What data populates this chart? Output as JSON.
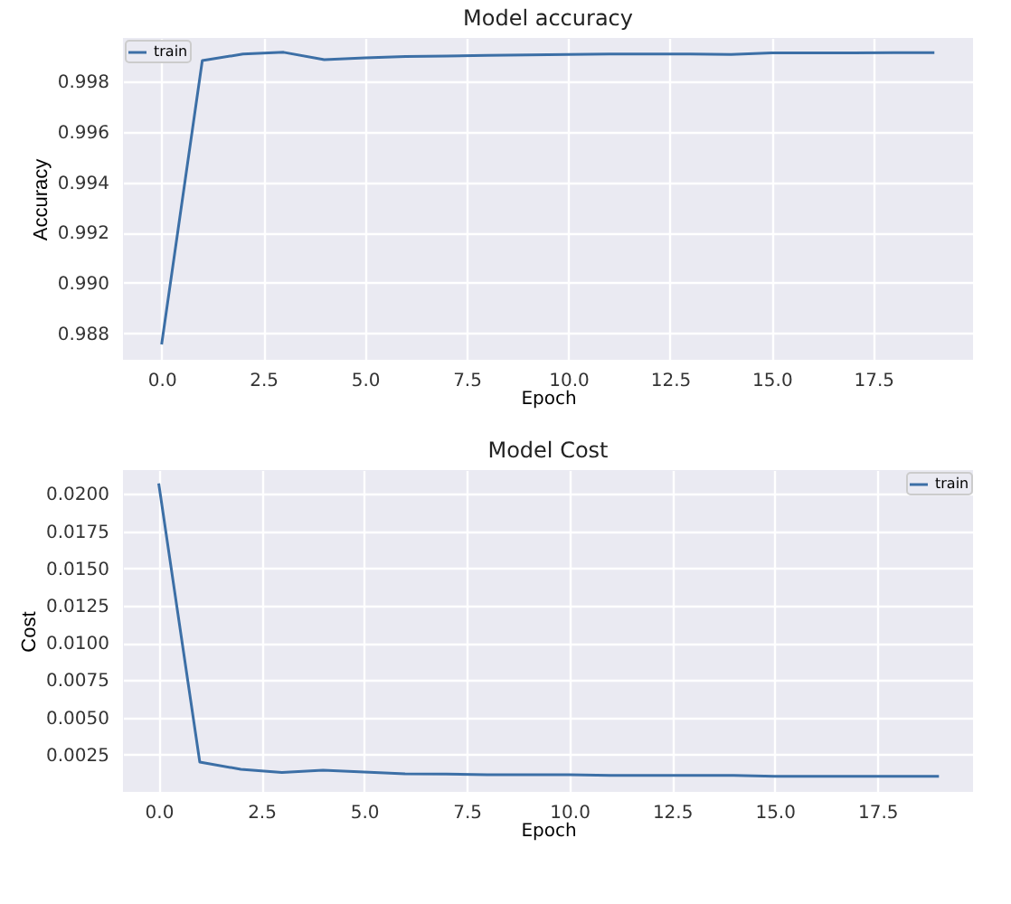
{
  "chart_data": [
    {
      "type": "line",
      "title": "Model accuracy",
      "xlabel": "Epoch",
      "ylabel": "Accuracy",
      "x": [
        0,
        1,
        2,
        3,
        4,
        5,
        6,
        7,
        8,
        9,
        10,
        11,
        12,
        13,
        14,
        15,
        16,
        17,
        18,
        19
      ],
      "series": [
        {
          "name": "train",
          "color": "#3c6fa6",
          "values": [
            0.98755,
            0.99884,
            0.9991,
            0.99917,
            0.99888,
            0.99895,
            0.999,
            0.99902,
            0.99905,
            0.99907,
            0.99908,
            0.9991,
            0.9991,
            0.9991,
            0.99908,
            0.99915,
            0.99915,
            0.99915,
            0.99916,
            0.99916
          ]
        }
      ],
      "xlim": [
        -0.95,
        19.95
      ],
      "ylim": [
        0.98694,
        0.99974
      ],
      "xticks": [
        {
          "value": 0,
          "label": "0.0"
        },
        {
          "value": 2.5,
          "label": "2.5"
        },
        {
          "value": 5,
          "label": "5.0"
        },
        {
          "value": 7.5,
          "label": "7.5"
        },
        {
          "value": 10,
          "label": "10.0"
        },
        {
          "value": 12.5,
          "label": "12.5"
        },
        {
          "value": 15,
          "label": "15.0"
        },
        {
          "value": 17.5,
          "label": "17.5"
        }
      ],
      "yticks": [
        0.988,
        {
          "value": 0.99,
          "label": "0.990"
        },
        0.992,
        0.994,
        0.996,
        0.998
      ],
      "grid": true,
      "legend": "top left"
    },
    {
      "type": "line",
      "title": "Model Cost",
      "xlabel": "Epoch",
      "ylabel": "Cost",
      "x": [
        0,
        1,
        2,
        3,
        4,
        5,
        6,
        7,
        8,
        9,
        10,
        11,
        12,
        13,
        14,
        15,
        16,
        17,
        18,
        19
      ],
      "series": [
        {
          "name": "train",
          "color": "#3c6fa6",
          "values": [
            0.0207,
            0.002,
            0.00152,
            0.0013,
            0.00145,
            0.00134,
            0.00122,
            0.0012,
            0.00115,
            0.00115,
            0.00115,
            0.0011,
            0.0011,
            0.0011,
            0.0011,
            0.00105,
            0.00105,
            0.00105,
            0.00105,
            0.00105
          ]
        }
      ],
      "xlim": [
        -0.87,
        19.83
      ],
      "ylim": [
        0,
        0.0216
      ],
      "xticks": [
        {
          "value": 0,
          "label": "0.0"
        },
        {
          "value": 2.5,
          "label": "2.5"
        },
        {
          "value": 5,
          "label": "5.0"
        },
        {
          "value": 7.5,
          "label": "7.5"
        },
        {
          "value": 10,
          "label": "10.0"
        },
        {
          "value": 12.5,
          "label": "12.5"
        },
        {
          "value": 15,
          "label": "15.0"
        },
        {
          "value": 17.5,
          "label": "17.5"
        }
      ],
      "yticks": [
        0.0025,
        {
          "value": 0.005,
          "label": "0.0050"
        },
        0.0075,
        {
          "value": 0.01,
          "label": "0.0100"
        },
        0.0125,
        {
          "value": 0.015,
          "label": "0.0150"
        },
        0.0175,
        {
          "value": 0.02,
          "label": "0.0200"
        }
      ],
      "grid": true,
      "legend": "top right"
    }
  ]
}
